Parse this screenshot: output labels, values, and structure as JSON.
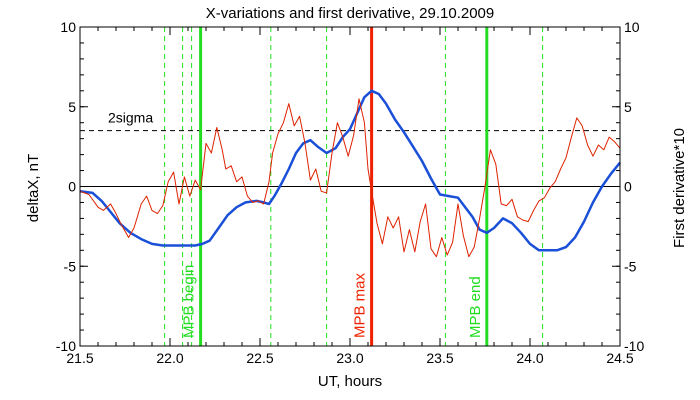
{
  "chart_data": {
    "type": "line",
    "title": "X-variations and first derivative, 29.10.2009",
    "xlabel": "UT, hours",
    "ylabel_left": "deltaX, nT",
    "ylabel_right": "First derivative*10",
    "xlim": [
      21.5,
      24.5
    ],
    "ylim": [
      -10,
      10
    ],
    "x_ticks": [
      21.5,
      22.0,
      22.5,
      23.0,
      23.5,
      24.0,
      24.5
    ],
    "x_tick_labels": [
      "21.5",
      "22.0",
      "22.5",
      "23.0",
      "23.5",
      "24.0",
      "24.5"
    ],
    "y_ticks": [
      -10,
      -5,
      0,
      5,
      10
    ],
    "y_tick_labels": [
      "-10",
      "-5",
      "0",
      "5",
      "10"
    ],
    "colors": {
      "deltax": "#1a4fd8",
      "derivative": "#dd2200",
      "mpb": "#22dd22",
      "max": "#ee2200",
      "axis": "#000000"
    },
    "reference_lines": [
      {
        "label": "2sigma",
        "y": 3.5,
        "style": "dashed",
        "color": "#000000"
      },
      {
        "label": "",
        "y": 0,
        "style": "solid",
        "color": "#000000"
      }
    ],
    "vertical_markers": [
      {
        "x": 22.17,
        "label": "MPB begin",
        "color": "#22dd22",
        "style": "solid"
      },
      {
        "x": 23.12,
        "label": "MPB max",
        "color": "#ee2200",
        "style": "solid"
      },
      {
        "x": 23.76,
        "label": "MPB end",
        "color": "#22dd22",
        "style": "solid"
      }
    ],
    "dashed_markers": [
      21.97,
      22.07,
      22.12,
      22.56,
      22.87,
      23.53,
      24.07
    ],
    "series": [
      {
        "id": "deltax",
        "axis": "left",
        "color": "#1a4fd8",
        "x": [
          21.5,
          21.57,
          21.62,
          21.67,
          21.72,
          21.78,
          21.84,
          21.9,
          21.96,
          22.02,
          22.08,
          22.14,
          22.18,
          22.22,
          22.27,
          22.32,
          22.37,
          22.42,
          22.48,
          22.52,
          22.55,
          22.58,
          22.62,
          22.66,
          22.7,
          22.74,
          22.78,
          22.82,
          22.87,
          22.92,
          22.96,
          23.0,
          23.04,
          23.08,
          23.12,
          23.16,
          23.2,
          23.25,
          23.3,
          23.35,
          23.4,
          23.45,
          23.5,
          23.55,
          23.6,
          23.64,
          23.68,
          23.72,
          23.76,
          23.8,
          23.85,
          23.9,
          23.95,
          24.0,
          24.05,
          24.1,
          24.15,
          24.2,
          24.25,
          24.3,
          24.35,
          24.4,
          24.45,
          24.5
        ],
        "y": [
          -0.3,
          -0.4,
          -0.9,
          -1.6,
          -2.3,
          -2.9,
          -3.3,
          -3.6,
          -3.7,
          -3.7,
          -3.7,
          -3.7,
          -3.6,
          -3.4,
          -2.6,
          -1.8,
          -1.3,
          -1.0,
          -0.9,
          -1.0,
          -1.1,
          -0.6,
          0.2,
          1.1,
          2.1,
          2.7,
          2.9,
          2.5,
          2.1,
          2.4,
          3.1,
          3.6,
          4.6,
          5.6,
          6.0,
          5.8,
          5.2,
          4.2,
          3.4,
          2.5,
          1.6,
          0.5,
          -0.5,
          -0.6,
          -0.7,
          -1.3,
          -1.9,
          -2.7,
          -2.9,
          -2.6,
          -2.0,
          -2.3,
          -2.9,
          -3.6,
          -4.0,
          -4.0,
          -4.0,
          -3.8,
          -3.2,
          -2.2,
          -1.0,
          0.0,
          0.8,
          1.5
        ]
      },
      {
        "id": "derivative",
        "axis": "right",
        "color": "#dd2200",
        "x": [
          21.5,
          21.55,
          21.6,
          21.63,
          21.67,
          21.7,
          21.73,
          21.77,
          21.8,
          21.84,
          21.87,
          21.9,
          21.93,
          21.96,
          21.99,
          22.02,
          22.05,
          22.08,
          22.11,
          22.14,
          22.17,
          22.2,
          22.23,
          22.26,
          22.29,
          22.31,
          22.34,
          22.37,
          22.4,
          22.43,
          22.46,
          22.49,
          22.52,
          22.55,
          22.57,
          22.6,
          22.63,
          22.66,
          22.69,
          22.72,
          22.75,
          22.78,
          22.81,
          22.84,
          22.87,
          22.9,
          22.93,
          22.96,
          22.99,
          23.02,
          23.05,
          23.08,
          23.1,
          23.12,
          23.15,
          23.18,
          23.21,
          23.24,
          23.27,
          23.3,
          23.33,
          23.36,
          23.39,
          23.42,
          23.45,
          23.48,
          23.51,
          23.54,
          23.57,
          23.6,
          23.63,
          23.66,
          23.69,
          23.72,
          23.75,
          23.78,
          23.81,
          23.84,
          23.87,
          23.9,
          23.93,
          23.96,
          23.99,
          24.02,
          24.05,
          24.08,
          24.11,
          24.14,
          24.17,
          24.2,
          24.23,
          24.26,
          24.29,
          24.32,
          24.35,
          24.38,
          24.41,
          24.44,
          24.47,
          24.5
        ],
        "y": [
          -0.3,
          -0.5,
          -1.3,
          -1.5,
          -1.1,
          -1.7,
          -2.4,
          -3.2,
          -2.6,
          -1.1,
          -0.6,
          -1.5,
          -1.7,
          -1.2,
          0.3,
          0.9,
          -1.1,
          0.6,
          -0.6,
          0.4,
          -0.2,
          2.7,
          2.1,
          3.7,
          2.3,
          1.1,
          1.3,
          0.3,
          0.6,
          -0.6,
          -1.0,
          -0.9,
          -1.1,
          0.3,
          2.1,
          3.3,
          4.0,
          5.2,
          3.8,
          4.4,
          2.7,
          0.4,
          1.1,
          -0.3,
          -0.4,
          2.1,
          4.0,
          3.1,
          1.9,
          3.2,
          5.5,
          4.0,
          1.1,
          -0.3,
          -2.3,
          -3.6,
          -1.9,
          -2.6,
          -1.9,
          -4.1,
          -2.7,
          -4.1,
          -2.2,
          -1.1,
          -3.9,
          -4.4,
          -3.2,
          -4.3,
          -3.5,
          -1.1,
          -3.1,
          -4.4,
          -3.8,
          -2.0,
          0.0,
          2.3,
          1.4,
          -1.1,
          -1.2,
          -0.8,
          -1.9,
          -2.1,
          -2.2,
          -1.5,
          -0.9,
          -0.7,
          -0.1,
          0.3,
          1.1,
          1.8,
          3.1,
          4.3,
          3.8,
          2.6,
          1.9,
          2.6,
          2.3,
          3.1,
          2.8,
          2.4
        ]
      }
    ]
  }
}
